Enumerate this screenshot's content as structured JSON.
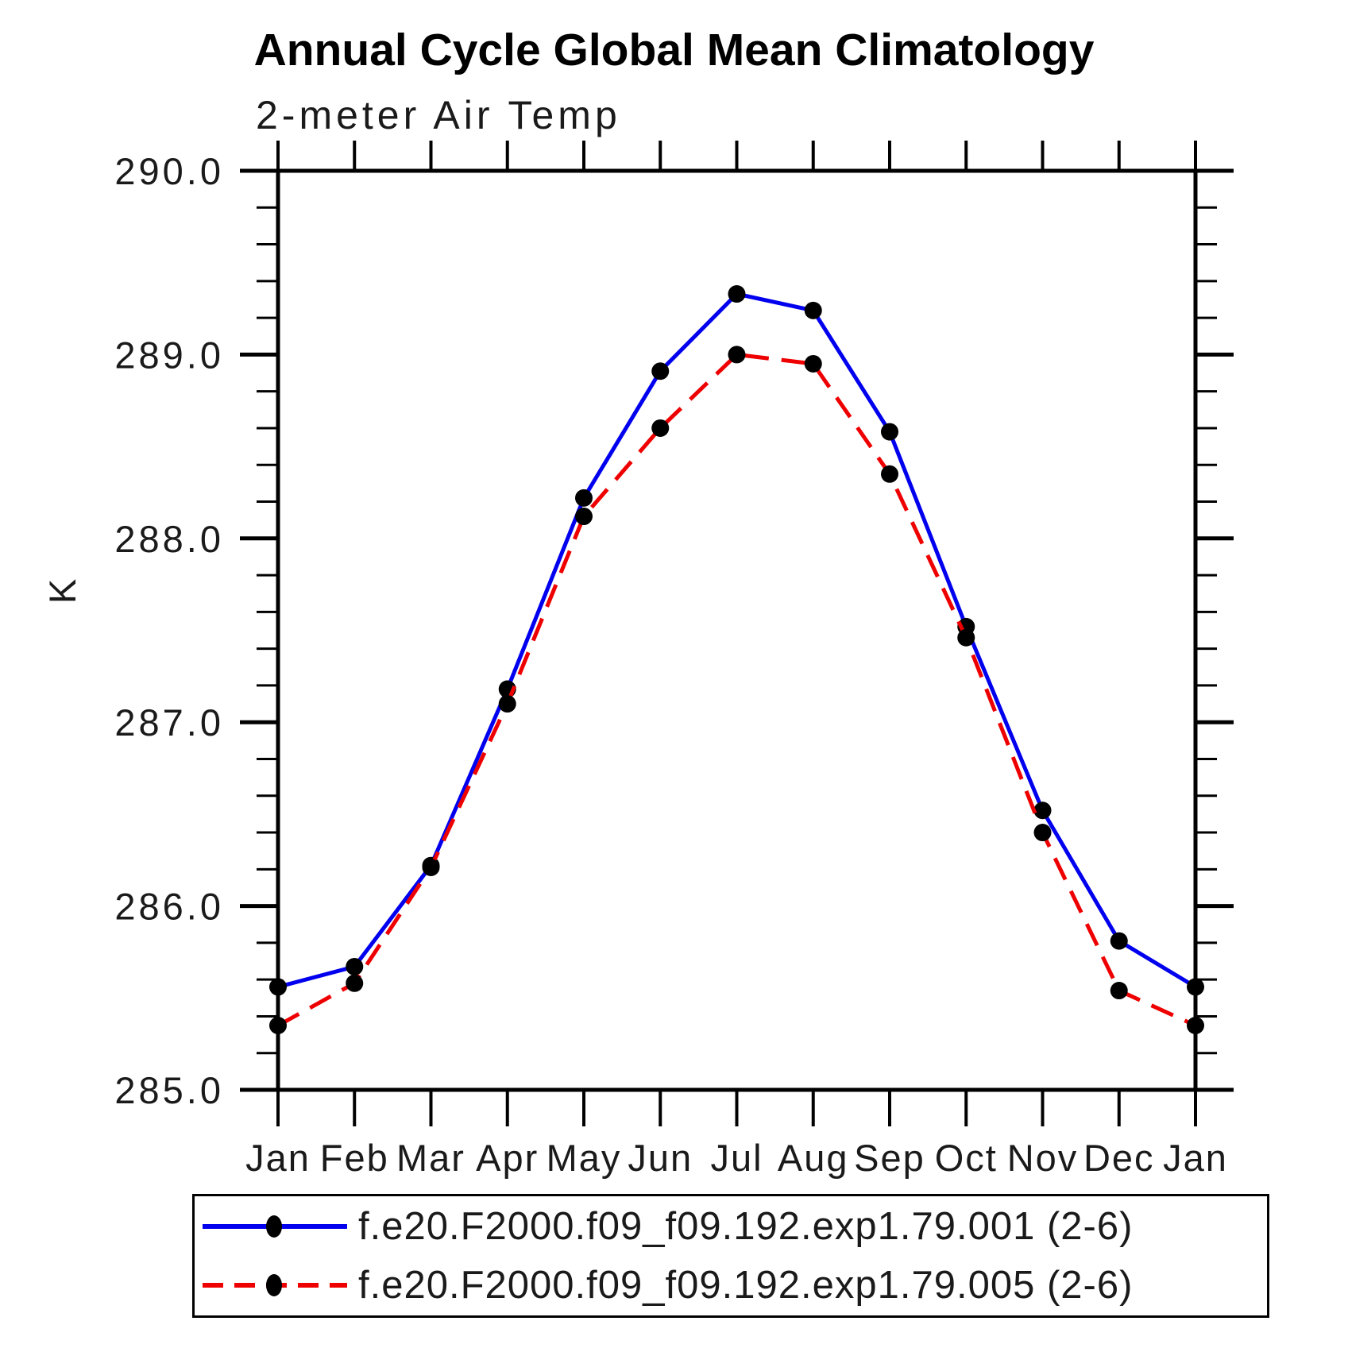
{
  "chart_data": {
    "type": "line",
    "title": "Annual Cycle Global Mean Climatology",
    "subtitle": "2-meter Air Temp",
    "ylabel": "K",
    "xlabel": "",
    "categories": [
      "Jan",
      "Feb",
      "Mar",
      "Apr",
      "May",
      "Jun",
      "Jul",
      "Aug",
      "Sep",
      "Oct",
      "Nov",
      "Dec",
      "Jan"
    ],
    "ylim": [
      285.0,
      290.0
    ],
    "ytick_major_step": 1.0,
    "ytick_minor_step": 0.2,
    "ytick_labels": [
      "285.0",
      "286.0",
      "287.0",
      "288.0",
      "289.0",
      "290.0"
    ],
    "grid": false,
    "legend_position": "bottom",
    "marker": "filled-circle",
    "marker_color": "#000000",
    "series": [
      {
        "name": "f.e20.F2000.f09_f09.192.exp1.79.001 (2-6)",
        "color": "#0000ee",
        "style": "solid",
        "values": [
          285.56,
          285.67,
          286.22,
          287.18,
          288.22,
          288.91,
          289.33,
          289.24,
          288.58,
          287.52,
          286.52,
          285.81,
          285.56
        ]
      },
      {
        "name": "f.e20.F2000.f09_f09.192.exp1.79.005 (2-6)",
        "color": "#ee0000",
        "style": "dashed",
        "values": [
          285.35,
          285.58,
          286.21,
          287.1,
          288.12,
          288.6,
          289.0,
          288.95,
          288.35,
          287.46,
          286.4,
          285.54,
          285.35
        ]
      }
    ]
  }
}
